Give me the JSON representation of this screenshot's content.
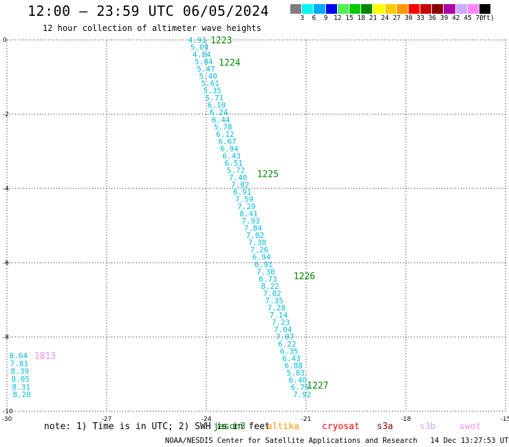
{
  "header": {
    "title": "12:00 – 23:59 UTC 06/05/2024",
    "subtitle": "12 hour collection of altimeter wave heights"
  },
  "colorbar": {
    "colors": [
      "#7f7f7f",
      "#00f5f5",
      "#00aaff",
      "#0000ee",
      "#55ee55",
      "#00cc00",
      "#008800",
      "#ffff00",
      "#ffcc00",
      "#ff9900",
      "#ff0000",
      "#cc0000",
      "#880000",
      "#aa00aa",
      "#ccaaff",
      "#ff88ff",
      "#000000"
    ],
    "ticks": [
      "3",
      "6",
      "9",
      "12",
      "15",
      "18",
      "21",
      "24",
      "27",
      "30",
      "33",
      "36",
      "39",
      "42",
      "45",
      "70",
      "(ft)"
    ]
  },
  "note": "note: 1) Time is in UTC; 2) SWH is in feet",
  "satellites": [
    {
      "name": "jason3",
      "color": "#008800"
    },
    {
      "name": "altika",
      "color": "#ff9900"
    },
    {
      "name": "cryosat",
      "color": "#ff0000"
    },
    {
      "name": "s3a",
      "color": "#880000"
    },
    {
      "name": "s3b",
      "color": "#ccaaff"
    },
    {
      "name": "swot",
      "color": "#ff88ff"
    }
  ],
  "footer": "NOAA/NESDIS Center for Satellite Applications and Research   14 Dec 13:27:53 UTC 2024",
  "chart_data": {
    "type": "scatter",
    "xlim": [
      -30,
      -15
    ],
    "ylim": [
      -10,
      0
    ],
    "xticks": [
      "-30",
      "-27",
      "-24",
      "-21",
      "-18",
      "-15"
    ],
    "yticks": [
      "0",
      "-2",
      "-4",
      "-6",
      "-8",
      "-10"
    ],
    "grid": true,
    "passes": [
      {
        "satellite": "jason3",
        "color": "#00bbdd",
        "start": [
          -24.27,
          0.0
        ],
        "end": [
          -21.12,
          -9.55
        ],
        "values": [
          "4.91",
          "5.09",
          "4.84",
          "5.84",
          "5.47",
          "5.40",
          "5.61",
          "5.35",
          "5.71",
          "6.10",
          "6.24",
          "6.44",
          "5.78",
          "6.12",
          "6.67",
          "6.94",
          "6.43",
          "6.51",
          "5.72",
          "7.40",
          "7.02",
          "6.91",
          "7.59",
          "7.29",
          "8.41",
          "7.93",
          "7.84",
          "7.02",
          "7.38",
          "7.26",
          "6.94",
          "6.91",
          "7.30",
          "6.73",
          "8.22",
          "7.02",
          "7.35",
          "7.28",
          "7.14",
          "7.23",
          "7.04",
          "7.07",
          "6.22",
          "6.35",
          "6.43",
          "6.88",
          "5.83",
          "6.40",
          "6.79",
          "7.92"
        ],
        "time_labels": [
          {
            "text": "1223",
            "x": -23.55,
            "y": 0.0
          },
          {
            "text": "1224",
            "x": -23.3,
            "y": -0.6
          },
          {
            "text": "1225",
            "x": -22.15,
            "y": -3.6
          },
          {
            "text": "1226",
            "x": -21.05,
            "y": -6.35
          },
          {
            "text": "1227",
            "x": -20.65,
            "y": -9.3
          }
        ]
      },
      {
        "satellite": "swot",
        "color": "#00bbdd",
        "start": [
          -29.65,
          -8.5
        ],
        "end": [
          -29.55,
          -9.55
        ],
        "values": [
          "8.64",
          "7.81",
          "8.39",
          "8.05",
          "8.31",
          "8.20"
        ],
        "time_labels": [
          {
            "text": "1813",
            "x": -28.85,
            "y": -8.5,
            "color": "#ff88ff"
          }
        ]
      }
    ]
  }
}
